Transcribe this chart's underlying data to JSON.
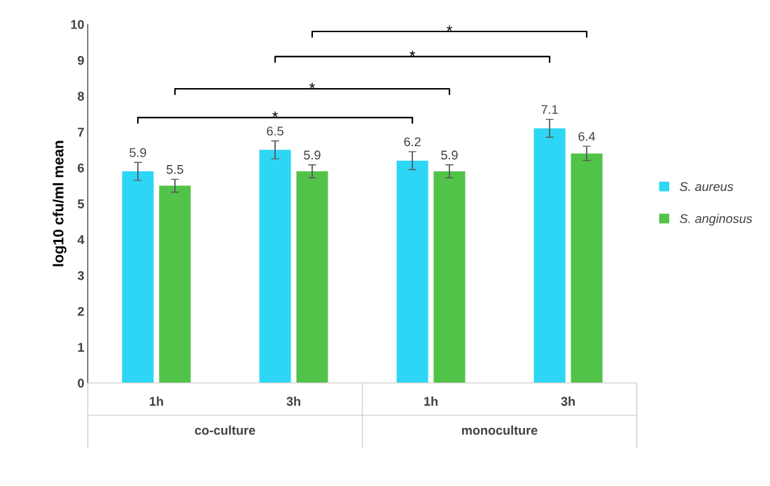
{
  "chart_data": {
    "type": "bar",
    "ylabel": "log10 cfu/ml mean",
    "categories": [
      "1h",
      "3h",
      "1h",
      "3h"
    ],
    "series": [
      {
        "name": "S. aureus",
        "color": "#2ed6f5",
        "values": [
          5.9,
          6.5,
          6.2,
          7.1
        ],
        "errors": [
          0.25,
          0.25,
          0.25,
          0.25
        ]
      },
      {
        "name": "S. anginosus",
        "color": "#52c349",
        "values": [
          5.5,
          5.9,
          5.9,
          6.4
        ],
        "errors": [
          0.18,
          0.18,
          0.18,
          0.2
        ]
      }
    ],
    "ylim": [
      0,
      10
    ],
    "yticks": [
      0,
      1,
      2,
      3,
      4,
      5,
      6,
      7,
      8,
      9,
      10
    ],
    "data_labels": true,
    "grid": false,
    "legend": "right",
    "annotations": [
      "co-culture",
      "monoculture",
      "*",
      "*",
      "*",
      "*"
    ]
  }
}
